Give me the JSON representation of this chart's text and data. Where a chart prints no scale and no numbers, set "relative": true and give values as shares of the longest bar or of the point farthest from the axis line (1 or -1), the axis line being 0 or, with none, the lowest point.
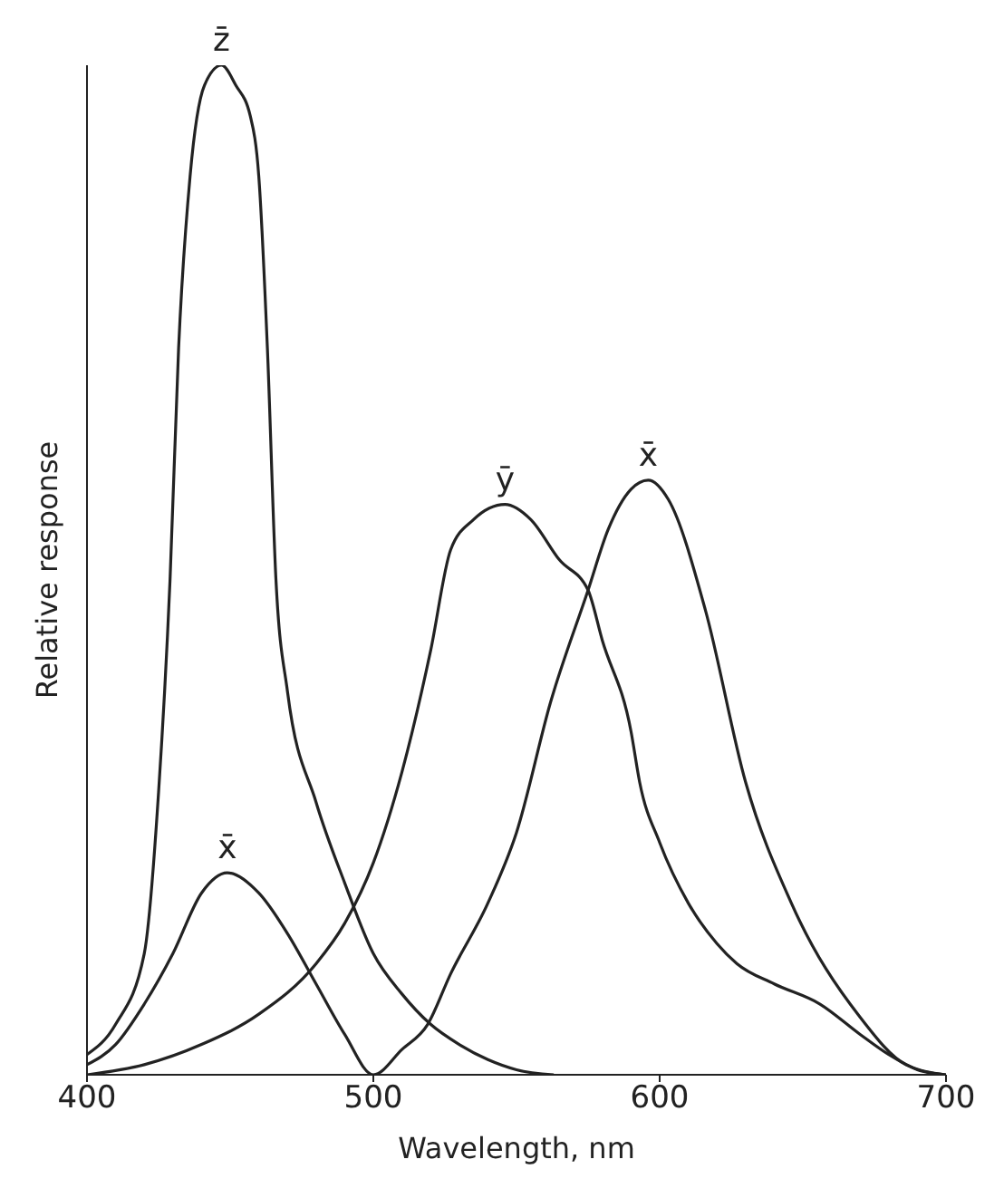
{
  "chart_data": {
    "type": "line",
    "relative": true,
    "xlabel": "Wavelength, nm",
    "ylabel": "Relative response",
    "xlim": [
      400,
      700
    ],
    "xticks": [
      400,
      500,
      600,
      700
    ],
    "marker": "none",
    "line_style": "solid",
    "series": [
      {
        "name": "z̄",
        "color": "#222222",
        "x": [
          400,
          410,
          420,
          425,
          429,
          432,
          436,
          441,
          447,
          452,
          457,
          460,
          463,
          466,
          470,
          480,
          490,
          500,
          510,
          520,
          530,
          540,
          550,
          563
        ],
        "values": [
          0.02,
          0.05,
          0.12,
          0.28,
          0.49,
          0.72,
          0.89,
          0.98,
          1,
          0.98,
          0.95,
          0.89,
          0.72,
          0.49,
          0.38,
          0.27,
          0.19,
          0.12,
          0.08,
          0.05,
          0.03,
          0.015,
          0.005,
          0
        ]
      },
      {
        "name": "ȳ",
        "color": "#222222",
        "x": [
          400,
          420,
          440,
          460,
          480,
          490,
          500,
          510,
          520,
          527,
          535,
          546,
          555,
          565,
          575,
          580,
          590,
          593,
          600,
          610,
          620,
          627,
          640,
          656,
          670,
          680,
          690,
          700
        ],
        "values": [
          0,
          0.01,
          0.03,
          0.06,
          0.11,
          0.15,
          0.21,
          0.3,
          0.42,
          0.52,
          0.55,
          0.565,
          0.55,
          0.51,
          0.48,
          0.43,
          0.34,
          0.29,
          0.23,
          0.17,
          0.13,
          0.11,
          0.09,
          0.07,
          0.04,
          0.02,
          0.005,
          0
        ]
      },
      {
        "name": "x̄",
        "color": "#222222",
        "x": [
          400,
          410,
          420,
          430,
          440,
          449,
          460,
          470,
          480,
          490,
          500,
          510,
          519,
          527,
          540,
          550,
          562,
          575,
          582,
          590,
          596,
          603,
          616,
          630,
          646,
          670,
          686,
          700
        ],
        "values": [
          0.01,
          0.03,
          0.07,
          0.12,
          0.18,
          0.2,
          0.18,
          0.14,
          0.09,
          0.04,
          0,
          0.025,
          0.05,
          0.1,
          0.17,
          0.24,
          0.37,
          0.48,
          0.54,
          0.58,
          0.589,
          0.57,
          0.46,
          0.29,
          0.17,
          0.057,
          0.01,
          0
        ]
      }
    ],
    "annotations": [
      {
        "text": "x̄",
        "x": 449,
        "y": 0.2
      }
    ]
  }
}
